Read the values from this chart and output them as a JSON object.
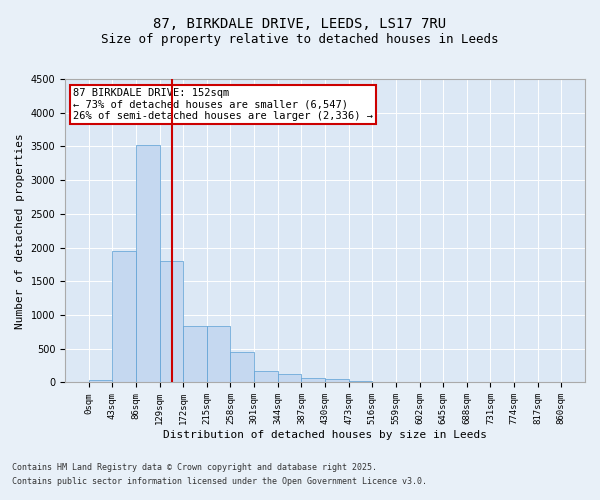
{
  "title_line1": "87, BIRKDALE DRIVE, LEEDS, LS17 7RU",
  "title_line2": "Size of property relative to detached houses in Leeds",
  "xlabel": "Distribution of detached houses by size in Leeds",
  "ylabel": "Number of detached properties",
  "footer_line1": "Contains HM Land Registry data © Crown copyright and database right 2025.",
  "footer_line2": "Contains public sector information licensed under the Open Government Licence v3.0.",
  "annotation_line1": "87 BIRKDALE DRIVE: 152sqm",
  "annotation_line2": "← 73% of detached houses are smaller (6,547)",
  "annotation_line3": "26% of semi-detached houses are larger (2,336) →",
  "bar_edges": [
    0,
    43,
    86,
    129,
    172,
    215,
    258,
    301,
    344,
    387,
    430,
    473,
    516,
    559,
    602,
    645,
    688,
    731,
    774,
    817,
    860
  ],
  "bar_heights": [
    30,
    1950,
    3520,
    1800,
    840,
    840,
    450,
    175,
    130,
    70,
    50,
    15,
    5,
    2,
    1,
    0,
    0,
    0,
    0,
    0
  ],
  "bar_color": "#c5d8f0",
  "bar_edge_color": "#5a9fd4",
  "vline_x": 152,
  "vline_color": "#cc0000",
  "ylim": [
    0,
    4500
  ],
  "yticks": [
    0,
    500,
    1000,
    1500,
    2000,
    2500,
    3000,
    3500,
    4000,
    4500
  ],
  "bg_color": "#e8f0f8",
  "plot_bg_color": "#dce8f5",
  "grid_color": "#ffffff",
  "annotation_box_color": "#cc0000",
  "title_fontsize": 10,
  "subtitle_fontsize": 9,
  "tick_label_fontsize": 6.5,
  "axis_label_fontsize": 8,
  "annotation_fontsize": 7.5,
  "footer_fontsize": 6,
  "ylabel_fontsize": 8
}
